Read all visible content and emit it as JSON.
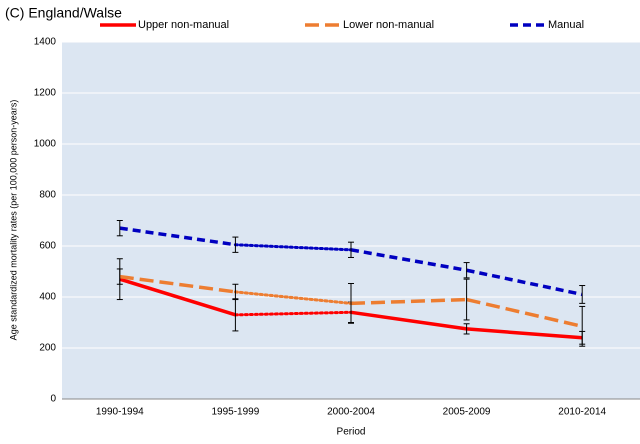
{
  "chart_data": {
    "type": "line",
    "title": "(C) England/Walse",
    "x_label": "Period",
    "y_label": "Age standardized mortality rates (per 100,000 person-years)",
    "categories": [
      "1990-1994",
      "1995-1999",
      "2000-2004",
      "2005-2009",
      "2010-2014"
    ],
    "series": [
      {
        "name": "Upper non-manual",
        "color": "#ff0000",
        "dash": "solid",
        "dotted_segments": [
          1
        ],
        "values": [
          470,
          330,
          340,
          275,
          240
        ],
        "errors": [
          80,
          63,
          40,
          20,
          25
        ]
      },
      {
        "name": "Lower non-manual",
        "color": "#ed7d31",
        "dash": "long",
        "dotted_segments": [
          1
        ],
        "values": [
          480,
          420,
          375,
          390,
          285
        ],
        "errors": [
          30,
          30,
          78,
          80,
          78
        ]
      },
      {
        "name": "Manual",
        "color": "#0000c0",
        "dash": "short",
        "dotted_segments": [
          1
        ],
        "values": [
          670,
          605,
          585,
          505,
          410
        ],
        "errors": [
          30,
          30,
          30,
          30,
          35
        ]
      }
    ],
    "ylim": [
      0,
      1400
    ],
    "yticks": [
      0,
      200,
      400,
      600,
      800,
      1000,
      1200,
      1400
    ],
    "grid": true,
    "legend": "top"
  }
}
